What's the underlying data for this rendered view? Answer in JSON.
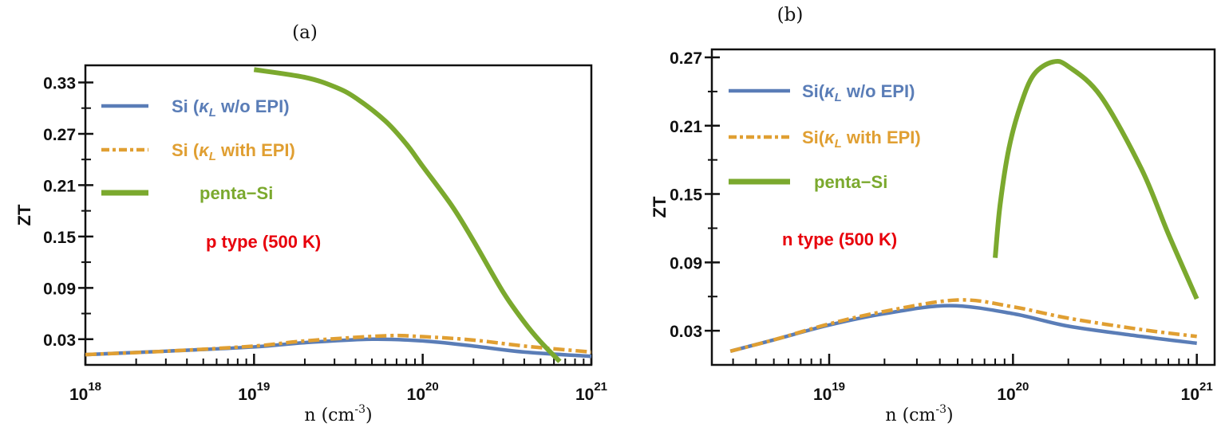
{
  "chart_data": [
    {
      "type": "line",
      "title": "(a)",
      "xlabel": "n (cm^-3)",
      "ylabel": "ZT",
      "xscale": "log",
      "xlim": [
        1e+18,
        1e+21
      ],
      "ylim": [
        0.0,
        0.35
      ],
      "xticks": [
        1e+18,
        1e+19,
        1e+20,
        1e+21
      ],
      "xtick_labels": [
        "10^18",
        "10^19",
        "10^20",
        "10^21"
      ],
      "yticks": [
        0.03,
        0.09,
        0.15,
        0.21,
        0.27,
        0.33
      ],
      "ytick_labels": [
        "0.03",
        "0.09",
        "0.15",
        "0.21",
        "0.27",
        "0.33"
      ],
      "legend_position": "top-left",
      "annotation": "p type (500 K)",
      "grid": false,
      "series": [
        {
          "name": "Si (κ_L w/o EPI)",
          "color": "#5a7db7",
          "style": "solid",
          "x": [
            1e+18,
            3e+18,
            1e+19,
            2e+19,
            5e+19,
            1e+20,
            2e+20,
            4e+20,
            1e+21
          ],
          "y": [
            0.012,
            0.016,
            0.021,
            0.026,
            0.03,
            0.028,
            0.022,
            0.015,
            0.01
          ]
        },
        {
          "name": "Si (κ_L with EPI)",
          "color": "#e09f32",
          "style": "dashdot",
          "x": [
            1e+18,
            3e+18,
            1e+19,
            2e+19,
            6e+19,
            1e+20,
            2e+20,
            4e+20,
            1e+21
          ],
          "y": [
            0.012,
            0.016,
            0.022,
            0.028,
            0.034,
            0.033,
            0.029,
            0.022,
            0.015
          ]
        },
        {
          "name": "penta−Si",
          "color": "#7ba92e",
          "style": "solid",
          "x": [
            1e+19,
            2e+19,
            3e+19,
            4e+19,
            6e+19,
            8e+19,
            1e+20,
            1.5e+20,
            2e+20,
            3e+20,
            4e+20,
            5e+20,
            6.5e+20
          ],
          "y": [
            0.345,
            0.336,
            0.325,
            0.312,
            0.285,
            0.258,
            0.232,
            0.185,
            0.145,
            0.085,
            0.05,
            0.027,
            0.004
          ]
        }
      ]
    },
    {
      "type": "line",
      "title": "(b)",
      "xlabel": "n (cm^-3)",
      "ylabel": "ZT",
      "xscale": "log",
      "xlim": [
        2.3e+18,
        1.25e+21
      ],
      "ylim": [
        0.0,
        0.277
      ],
      "xticks": [
        1e+19,
        1e+20,
        1e+21
      ],
      "xtick_labels": [
        "10^19",
        "10^20",
        "10^21"
      ],
      "yticks": [
        0.03,
        0.09,
        0.15,
        0.21,
        0.27
      ],
      "ytick_labels": [
        "0.03",
        "0.09",
        "0.15",
        "0.21",
        "0.27"
      ],
      "legend_position": "top-left",
      "annotation": "n type (500 K)",
      "grid": false,
      "series": [
        {
          "name": "Si(κ_L w/o EPI)",
          "color": "#5a7db7",
          "style": "solid",
          "x": [
            2.9e+18,
            5e+18,
            1e+19,
            2e+19,
            4.5e+19,
            1e+20,
            2e+20,
            5e+20,
            1e+21
          ],
          "y": [
            0.012,
            0.022,
            0.035,
            0.045,
            0.052,
            0.045,
            0.034,
            0.025,
            0.019
          ]
        },
        {
          "name": "Si(κ_L with EPI)",
          "color": "#e09f32",
          "style": "dashdot",
          "x": [
            2.9e+18,
            5e+18,
            1e+19,
            2e+19,
            5e+19,
            1e+20,
            2e+20,
            5e+20,
            1e+21
          ],
          "y": [
            0.012,
            0.022,
            0.036,
            0.047,
            0.057,
            0.051,
            0.041,
            0.031,
            0.025
          ]
        },
        {
          "name": "penta−Si",
          "color": "#7ba92e",
          "style": "solid",
          "x": [
            8e+19,
            8.5e+19,
            9.5e+19,
            1.1e+20,
            1.3e+20,
            1.65e+20,
            2e+20,
            3e+20,
            5e+20,
            7e+20,
            1e+21
          ],
          "y": [
            0.094,
            0.14,
            0.19,
            0.228,
            0.255,
            0.266,
            0.262,
            0.236,
            0.172,
            0.115,
            0.058
          ]
        }
      ]
    }
  ]
}
